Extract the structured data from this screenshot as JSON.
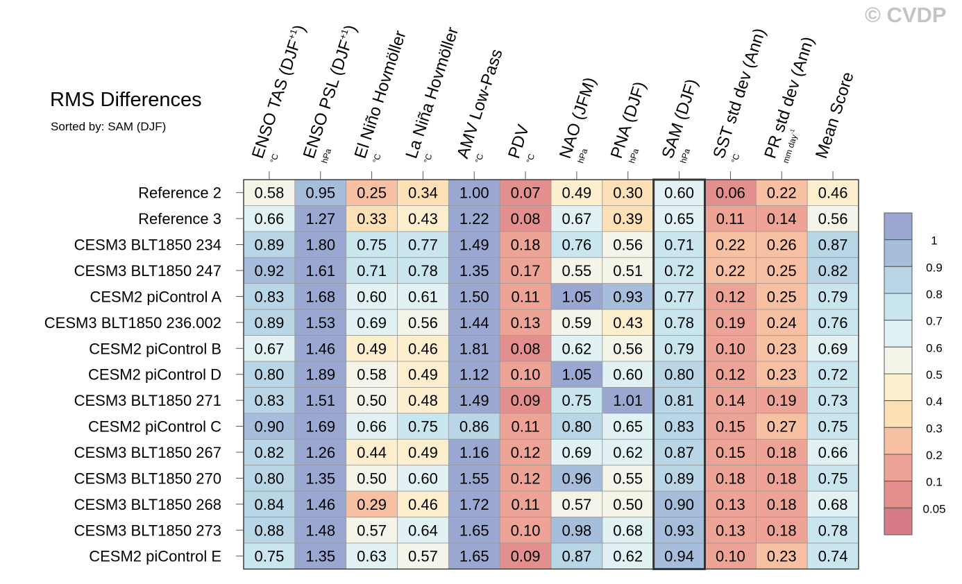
{
  "copyright": "© CVDP",
  "chart_data": {
    "type": "heatmap",
    "title": "RMS Differences",
    "subtitle": "Sorted by: SAM (DJF)",
    "columns": [
      {
        "label": "ENSO TAS (DJF",
        "sup": "+1",
        "close": ")",
        "unit": "°C"
      },
      {
        "label": "ENSO PSL (DJF",
        "sup": "+1",
        "close": ")",
        "unit": "hPa"
      },
      {
        "label": "El Niño Hovmöller",
        "sup": "",
        "close": "",
        "unit": "°C"
      },
      {
        "label": "La Niña Hovmöller",
        "sup": "",
        "close": "",
        "unit": "°C"
      },
      {
        "label": "AMV Low-Pass",
        "sup": "",
        "close": "",
        "unit": "°C"
      },
      {
        "label": "PDV",
        "sup": "",
        "close": "",
        "unit": "°C"
      },
      {
        "label": "NAO (JFM)",
        "sup": "",
        "close": "",
        "unit": "hPa"
      },
      {
        "label": "PNA (DJF)",
        "sup": "",
        "close": "",
        "unit": "hPa"
      },
      {
        "label": "SAM (DJF)",
        "sup": "",
        "close": "",
        "unit": "hPa"
      },
      {
        "label": "SST std dev (Ann)",
        "sup": "",
        "close": "",
        "unit": "°C"
      },
      {
        "label": "PR std dev (Ann)",
        "sup": "",
        "close": "",
        "unit": "mm day",
        "unit_sup": "-1"
      },
      {
        "label": "Mean Score",
        "sup": "",
        "close": "",
        "unit": ""
      }
    ],
    "sorted_column_index": 8,
    "rows": [
      {
        "name": "Reference 2",
        "values": [
          "0.58",
          "0.95",
          "0.25",
          "0.34",
          "1.00",
          "0.07",
          "0.49",
          "0.30",
          "0.60",
          "0.06",
          "0.22",
          "0.46"
        ]
      },
      {
        "name": "Reference 3",
        "values": [
          "0.66",
          "1.27",
          "0.33",
          "0.43",
          "1.22",
          "0.08",
          "0.67",
          "0.39",
          "0.65",
          "0.11",
          "0.14",
          "0.56"
        ]
      },
      {
        "name": "CESM3 BLT1850 234",
        "values": [
          "0.89",
          "1.80",
          "0.75",
          "0.77",
          "1.49",
          "0.18",
          "0.76",
          "0.56",
          "0.71",
          "0.22",
          "0.26",
          "0.87"
        ]
      },
      {
        "name": "CESM3 BLT1850 247",
        "values": [
          "0.92",
          "1.61",
          "0.71",
          "0.78",
          "1.35",
          "0.17",
          "0.55",
          "0.51",
          "0.72",
          "0.22",
          "0.25",
          "0.82"
        ]
      },
      {
        "name": "CESM2 piControl A",
        "values": [
          "0.83",
          "1.68",
          "0.60",
          "0.61",
          "1.50",
          "0.11",
          "1.05",
          "0.93",
          "0.77",
          "0.12",
          "0.25",
          "0.79"
        ]
      },
      {
        "name": "CESM3 BLT1850 236.002",
        "values": [
          "0.89",
          "1.53",
          "0.69",
          "0.56",
          "1.44",
          "0.13",
          "0.59",
          "0.43",
          "0.78",
          "0.19",
          "0.24",
          "0.76"
        ]
      },
      {
        "name": "CESM2 piControl B",
        "values": [
          "0.67",
          "1.46",
          "0.49",
          "0.46",
          "1.81",
          "0.08",
          "0.62",
          "0.56",
          "0.79",
          "0.10",
          "0.23",
          "0.69"
        ]
      },
      {
        "name": "CESM2 piControl D",
        "values": [
          "0.80",
          "1.89",
          "0.58",
          "0.49",
          "1.12",
          "0.10",
          "1.05",
          "0.60",
          "0.80",
          "0.12",
          "0.23",
          "0.72"
        ]
      },
      {
        "name": "CESM3 BLT1850 271",
        "values": [
          "0.83",
          "1.51",
          "0.50",
          "0.48",
          "1.49",
          "0.09",
          "0.75",
          "1.01",
          "0.81",
          "0.14",
          "0.19",
          "0.73"
        ]
      },
      {
        "name": "CESM2 piControl C",
        "values": [
          "0.90",
          "1.69",
          "0.66",
          "0.75",
          "0.86",
          "0.11",
          "0.80",
          "0.65",
          "0.83",
          "0.15",
          "0.27",
          "0.75"
        ]
      },
      {
        "name": "CESM3 BLT1850 267",
        "values": [
          "0.82",
          "1.26",
          "0.44",
          "0.49",
          "1.16",
          "0.12",
          "0.69",
          "0.62",
          "0.87",
          "0.15",
          "0.18",
          "0.66"
        ]
      },
      {
        "name": "CESM3 BLT1850 270",
        "values": [
          "0.80",
          "1.35",
          "0.50",
          "0.60",
          "1.55",
          "0.12",
          "0.96",
          "0.55",
          "0.89",
          "0.18",
          "0.18",
          "0.75"
        ]
      },
      {
        "name": "CESM3 BLT1850 268",
        "values": [
          "0.84",
          "1.46",
          "0.29",
          "0.46",
          "1.72",
          "0.11",
          "0.57",
          "0.50",
          "0.90",
          "0.13",
          "0.18",
          "0.68"
        ]
      },
      {
        "name": "CESM3 BLT1850 273",
        "values": [
          "0.88",
          "1.48",
          "0.57",
          "0.64",
          "1.65",
          "0.10",
          "0.98",
          "0.68",
          "0.93",
          "0.13",
          "0.18",
          "0.78"
        ]
      },
      {
        "name": "CESM2 piControl E",
        "values": [
          "0.75",
          "1.35",
          "0.63",
          "0.57",
          "1.65",
          "0.09",
          "0.87",
          "0.62",
          "0.94",
          "0.10",
          "0.23",
          "0.74"
        ]
      }
    ],
    "colorbar": {
      "labels": [
        "1",
        "0.9",
        "0.8",
        "0.7",
        "0.6",
        "0.5",
        "0.4",
        "0.3",
        "0.2",
        "0.1",
        "0.05"
      ],
      "levels": [
        1,
        0.9,
        0.8,
        0.7,
        0.6,
        0.5,
        0.4,
        0.3,
        0.2,
        0.1,
        0.05
      ],
      "colors": [
        "#9aa8d1",
        "#a6bedc",
        "#b8d6e6",
        "#c9e5ee",
        "#e2f1f4",
        "#f5f4e9",
        "#fdefcd",
        "#fde0b6",
        "#f8c0a3",
        "#eda395",
        "#e38f8e",
        "#d57c88"
      ]
    }
  }
}
